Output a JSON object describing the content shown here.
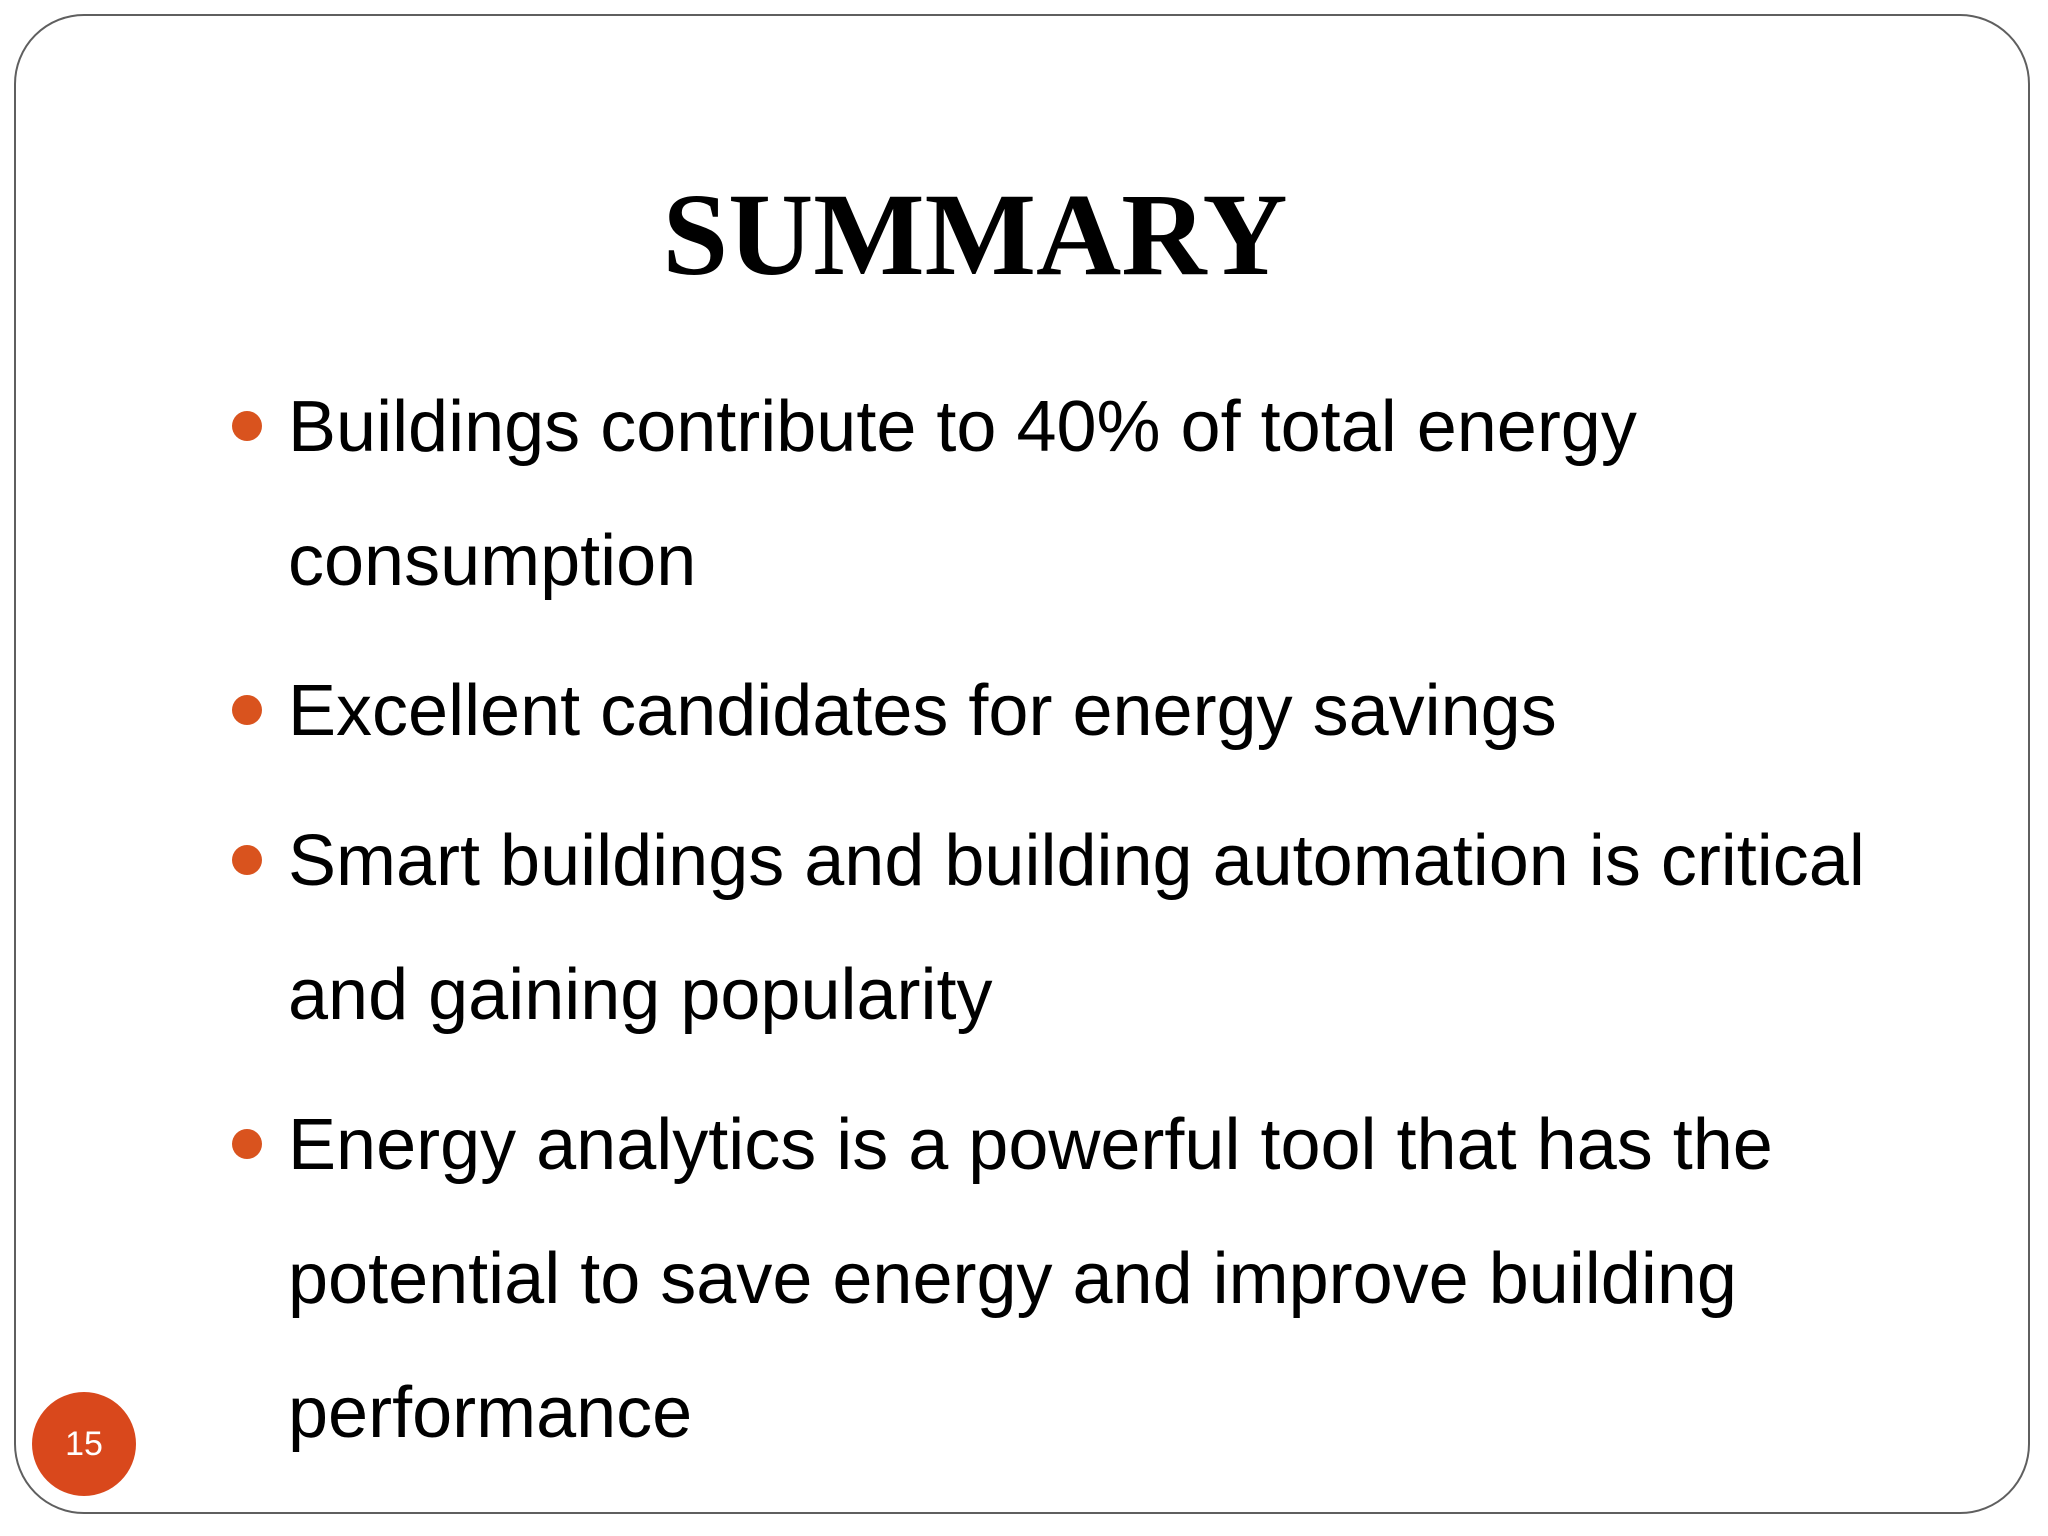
{
  "slide": {
    "title": "SUMMARY",
    "bullets": [
      "Buildings contribute to 40% of total energy consumption",
      "Excellent candidates for energy savings",
      "Smart buildings and building automation is critical and gaining popularity",
      "Energy analytics is a powerful tool that has the potential to save energy and improve building performance"
    ],
    "page_number": "15",
    "colors": {
      "accent": "#d9531e",
      "frame": "#5f5f5f",
      "text": "#000000"
    }
  }
}
